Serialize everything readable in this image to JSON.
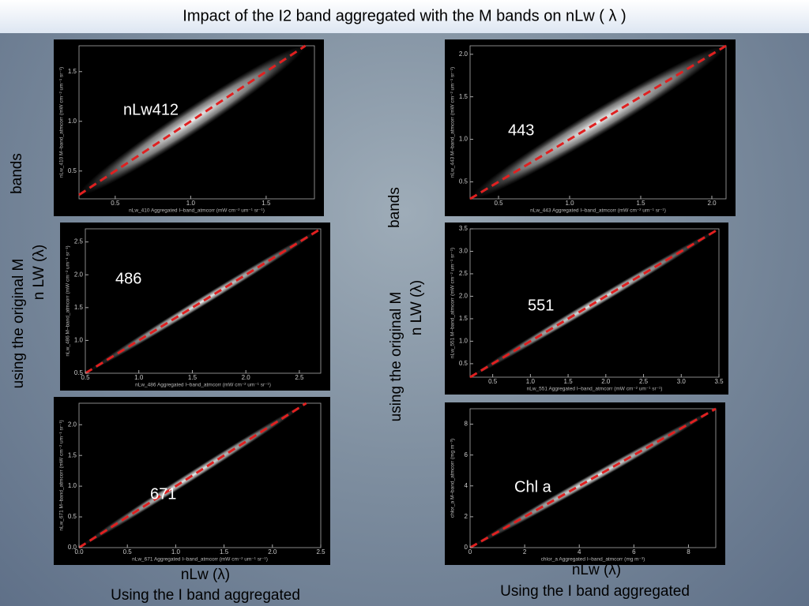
{
  "title": "Impact of the  I2 band aggregated  with the M bands  on nLw ( λ )",
  "left_side": [
    "bands",
    "using the  original  M",
    "n LW  (λ)"
  ],
  "right_side": [
    "bands",
    "using the  original  M",
    "n LW  (λ)"
  ],
  "left_bottom": [
    "nLw (λ)",
    "Using the  I band aggregated"
  ],
  "right_bottom": [
    "nLw (λ)",
    "Using the  I band aggregated"
  ],
  "panels": [
    {
      "label": "nLw412",
      "x_label": "nLw_410 Aggregated I–band_atmcorr (mW cm⁻² um⁻¹ sr⁻¹)",
      "y_label": "nLw_410 M–band_atmcorr (mW cm⁻² um⁻¹ sr⁻¹)",
      "xlim": [
        0.26,
        1.82
      ],
      "ylim": [
        0.22,
        1.76
      ],
      "xticks": [
        0.5,
        {
          "value": 1,
          "label": "1.0"
        },
        1.5
      ],
      "yticks": [
        0.5,
        {
          "value": 1,
          "label": "1.0"
        },
        1.5
      ]
    },
    {
      "label": "443",
      "x_label": "nLw_443 Aggregated I–band_atmcorr (mW cm⁻² um⁻¹ sr⁻¹)",
      "y_label": "nLw_443 M–band_atmcorr (mW cm⁻² um⁻¹ sr⁻¹)",
      "xlim": [
        0.3,
        2.1
      ],
      "ylim": [
        0.3,
        2.1
      ],
      "xticks": [
        0.5,
        {
          "value": 1,
          "label": "1.0"
        },
        1.5,
        {
          "value": 2,
          "label": "2.0"
        }
      ],
      "yticks": [
        0.5,
        {
          "value": 1,
          "label": "1.0"
        },
        1.5,
        {
          "value": 2,
          "label": "2.0"
        }
      ]
    },
    {
      "label": "486",
      "x_label": "nLw_486 Aggregated I–band_atmcorr (mW cm⁻² um⁻¹ sr⁻¹)",
      "y_label": "nLw_486 M–band_atmcorr (mW cm⁻² um⁻¹ sr⁻¹)",
      "xlim": [
        0.5,
        2.7
      ],
      "ylim": [
        0.5,
        2.7
      ],
      "xticks": [
        0.5,
        {
          "value": 1,
          "label": "1.0"
        },
        1.5,
        {
          "value": 2,
          "label": "2.0"
        },
        2.5
      ],
      "yticks": [
        0.5,
        {
          "value": 1,
          "label": "1.0"
        },
        1.5,
        {
          "value": 2,
          "label": "2.0"
        },
        2.5
      ]
    },
    {
      "label": "551",
      "x_label": "nLw_551 Aggregated I–band_atmcorr (mW cm⁻² um⁻¹ sr⁻¹)",
      "y_label": "nLw_551 M–band_atmcorr (mW cm⁻² um⁻¹ sr⁻¹)",
      "xlim": [
        0.2,
        3.5
      ],
      "ylim": [
        0.2,
        3.5
      ],
      "xticks": [
        0.5,
        {
          "value": 1,
          "label": "1.0"
        },
        1.5,
        {
          "value": 2,
          "label": "2.0"
        },
        2.5,
        {
          "value": 3,
          "label": "3.0"
        },
        3.5
      ],
      "yticks": [
        0.5,
        {
          "value": 1,
          "label": "1.0"
        },
        1.5,
        {
          "value": 2,
          "label": "2.0"
        },
        2.5,
        {
          "value": 3,
          "label": "3.0"
        },
        3.5
      ]
    },
    {
      "label": "671",
      "x_label": "nLw_671 Aggregated I–band_atmcorr (mW cm⁻² um⁻¹ sr⁻¹)",
      "y_label": "nLw_671 M–band_atmcorr (mW cm⁻² um⁻¹ sr⁻¹)",
      "xlim": [
        0,
        2.5
      ],
      "ylim": [
        0,
        2.35
      ],
      "xticks": [
        {
          "value": 0,
          "label": "0.0"
        },
        0.5,
        {
          "value": 1,
          "label": "1.0"
        },
        1.5,
        {
          "value": 2,
          "label": "2.0"
        },
        2.5
      ],
      "yticks": [
        {
          "value": 0,
          "label": "0.0"
        },
        0.5,
        {
          "value": 1,
          "label": "1.0"
        },
        1.5,
        {
          "value": 2,
          "label": "2.0"
        }
      ]
    },
    {
      "label": "Chl a",
      "x_label": "chlor_a Aggregated I–band_atmcorr (mg m⁻³)",
      "y_label": "chlor_a M–band_atmcorr (mg m⁻³)",
      "xlim": [
        0,
        9
      ],
      "ylim": [
        0,
        9
      ],
      "xticks": [
        0,
        2,
        4,
        6,
        8
      ],
      "yticks": [
        0,
        2,
        4,
        6,
        8
      ]
    }
  ]
}
